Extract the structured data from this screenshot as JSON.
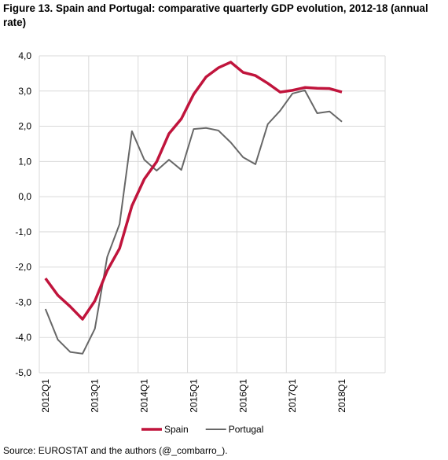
{
  "chart_data": {
    "type": "line",
    "title": "Figure 13. Spain and Portugal: comparative quarterly GDP evolution, 2012-18 (annual rate)",
    "source": "Source: EUROSTAT and the authors (@_combarro_).",
    "categories": [
      "2012Q1",
      null,
      null,
      null,
      "2013Q1",
      null,
      null,
      null,
      "2014Q1",
      null,
      null,
      null,
      "2015Q1",
      null,
      null,
      null,
      "2016Q1",
      null,
      null,
      null,
      "2017Q1",
      null,
      null,
      null,
      "2018Q1",
      null,
      null,
      null
    ],
    "series": [
      {
        "name": "Spain",
        "color": "#c0143c",
        "values": [
          -2.32,
          -2.8,
          -3.12,
          -3.48,
          -2.96,
          -2.1,
          -1.47,
          -0.26,
          0.5,
          0.99,
          1.79,
          2.21,
          2.91,
          3.4,
          3.66,
          3.82,
          3.53,
          3.44,
          3.22,
          2.97,
          3.02,
          3.1,
          3.08,
          3.07,
          2.97,
          null,
          null,
          null
        ]
      },
      {
        "name": "Portugal",
        "color": "#676767",
        "values": [
          -3.19,
          -4.06,
          -4.41,
          -4.46,
          -3.75,
          -1.71,
          -0.78,
          1.86,
          1.05,
          0.74,
          1.05,
          0.76,
          1.92,
          1.95,
          1.88,
          1.54,
          1.12,
          0.92,
          2.06,
          2.44,
          2.93,
          3.02,
          2.37,
          2.42,
          2.13,
          null,
          null,
          null
        ]
      }
    ],
    "ylim": [
      -5,
      4
    ],
    "yticks": [
      {
        "value": -5,
        "label": "-5,0"
      },
      {
        "value": -4,
        "label": "-4,0"
      },
      {
        "value": -3,
        "label": "-3,0"
      },
      {
        "value": -2,
        "label": "-2,0"
      },
      {
        "value": -1,
        "label": "-1,0"
      },
      {
        "value": 0,
        "label": "0,0"
      },
      {
        "value": 1,
        "label": "1,0"
      },
      {
        "value": 2,
        "label": "2,0"
      },
      {
        "value": 3,
        "label": "3,0"
      },
      {
        "value": 4,
        "label": "4,0"
      }
    ],
    "grid": true,
    "legend": "bottom"
  }
}
